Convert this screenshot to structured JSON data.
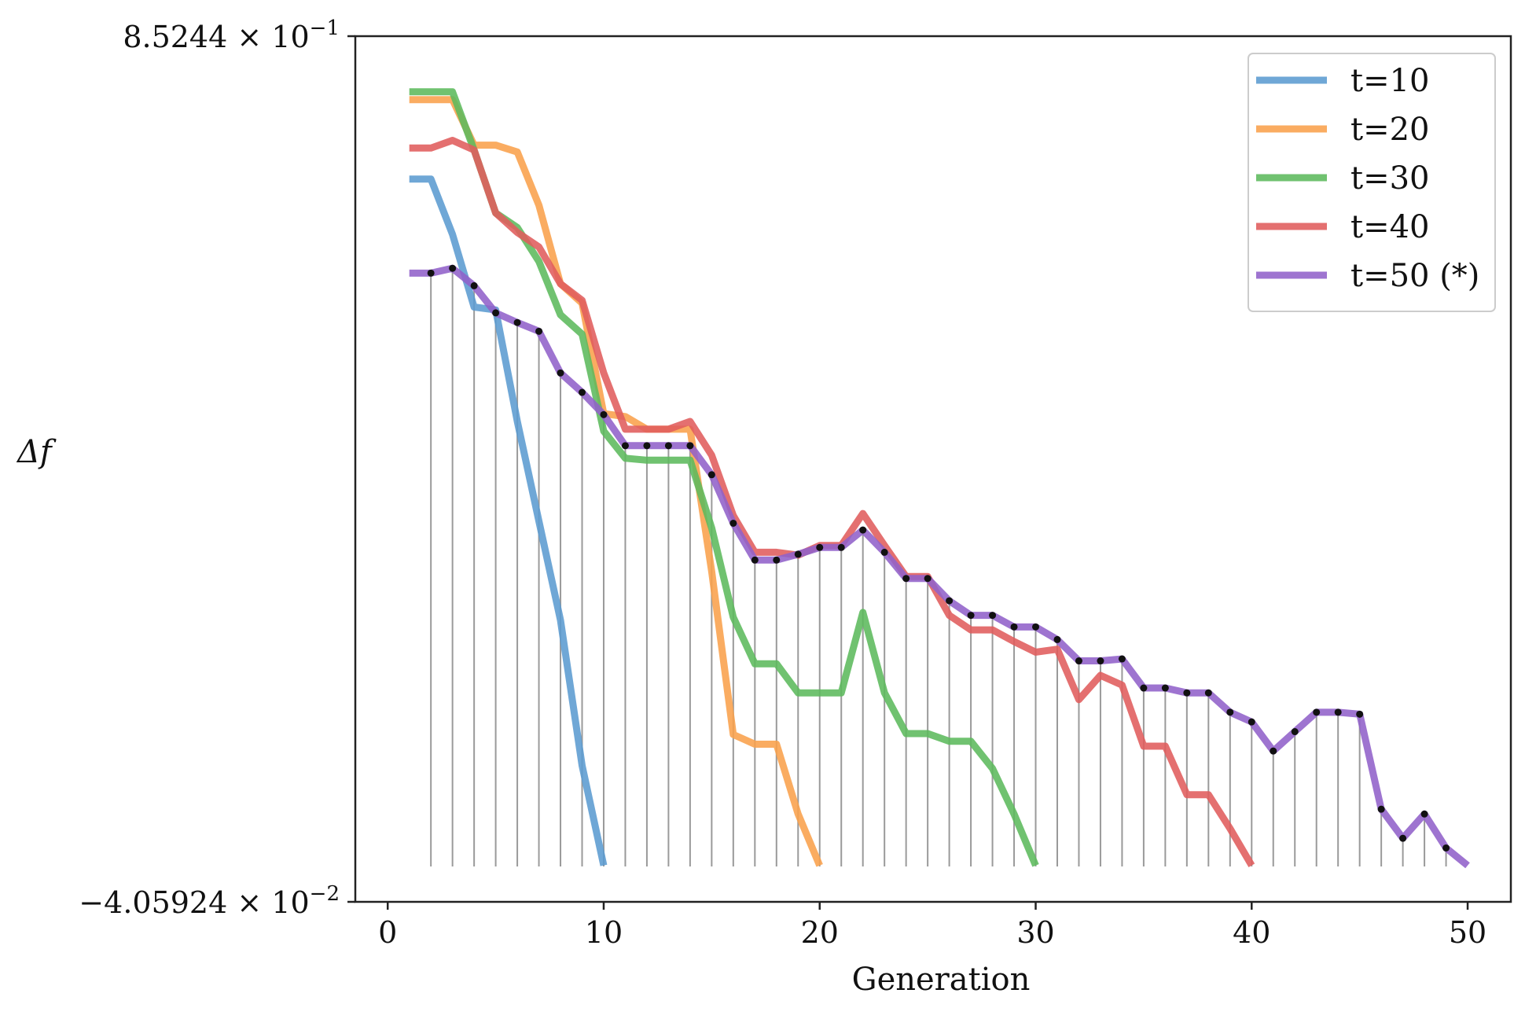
{
  "chart_data": {
    "type": "line",
    "title": "",
    "xlabel": "Generation",
    "ylabel": "Δf",
    "xlim": [
      -1.5,
      52
    ],
    "ylim": [
      -0.0405924,
      0.85244
    ],
    "x_ticks": [
      0,
      10,
      20,
      30,
      40,
      50
    ],
    "y_tick_labels": {
      "top": {
        "mantissa": "8.5244",
        "times": "×",
        "base": "10",
        "exponent": "−1"
      },
      "bottom": {
        "mantissa": "−4.05924",
        "times": "×",
        "base": "10",
        "exponent": "−2"
      }
    },
    "grid": false,
    "legend_position": "top-right",
    "marked_series": "t=50 (*)",
    "series": [
      {
        "name": "t=10",
        "color": "#5b9bd0",
        "x": [
          1,
          2,
          3,
          4,
          5,
          6,
          7,
          8,
          9,
          10
        ],
        "y": [
          0.705,
          0.705,
          0.648,
          0.573,
          0.57,
          0.455,
          0.352,
          0.25,
          0.1,
          -0.003
        ]
      },
      {
        "name": "t=20",
        "color": "#f9a04b",
        "x": [
          1,
          2,
          3,
          4,
          5,
          6,
          7,
          8,
          9,
          10,
          11,
          12,
          13,
          14,
          15,
          16,
          17,
          18,
          19,
          20
        ],
        "y": [
          0.787,
          0.787,
          0.787,
          0.74,
          0.74,
          0.733,
          0.678,
          0.597,
          0.577,
          0.463,
          0.46,
          0.447,
          0.447,
          0.447,
          0.3,
          0.132,
          0.122,
          0.122,
          0.05,
          -0.003
        ]
      },
      {
        "name": "t=30",
        "color": "#5cba5c",
        "x": [
          1,
          2,
          3,
          4,
          5,
          6,
          7,
          8,
          9,
          10,
          11,
          12,
          13,
          14,
          15,
          16,
          17,
          18,
          19,
          20,
          21,
          22,
          23,
          24,
          25,
          26,
          27,
          28,
          29,
          30
        ],
        "y": [
          0.795,
          0.795,
          0.795,
          0.735,
          0.67,
          0.655,
          0.62,
          0.565,
          0.545,
          0.445,
          0.417,
          0.415,
          0.415,
          0.415,
          0.345,
          0.253,
          0.205,
          0.205,
          0.175,
          0.175,
          0.175,
          0.258,
          0.175,
          0.133,
          0.133,
          0.125,
          0.125,
          0.097,
          0.05,
          -0.003
        ]
      },
      {
        "name": "t=40",
        "color": "#e05c5c",
        "x": [
          1,
          2,
          3,
          4,
          5,
          6,
          7,
          8,
          9,
          10,
          11,
          12,
          13,
          14,
          15,
          16,
          17,
          18,
          19,
          20,
          21,
          22,
          23,
          24,
          25,
          26,
          27,
          28,
          29,
          30,
          31,
          32,
          33,
          34,
          35,
          36,
          37,
          38,
          39,
          40
        ],
        "y": [
          0.737,
          0.737,
          0.745,
          0.735,
          0.67,
          0.65,
          0.635,
          0.597,
          0.58,
          0.505,
          0.447,
          0.447,
          0.447,
          0.455,
          0.42,
          0.358,
          0.32,
          0.32,
          0.317,
          0.327,
          0.327,
          0.36,
          0.327,
          0.295,
          0.295,
          0.255,
          0.24,
          0.24,
          0.228,
          0.217,
          0.22,
          0.168,
          0.193,
          0.183,
          0.12,
          0.12,
          0.07,
          0.07,
          0.035,
          -0.003
        ]
      },
      {
        "name": "t=50 (*)",
        "color": "#9161c9",
        "x": [
          1,
          2,
          3,
          4,
          5,
          6,
          7,
          8,
          9,
          10,
          11,
          12,
          13,
          14,
          15,
          16,
          17,
          18,
          19,
          20,
          21,
          22,
          23,
          24,
          25,
          26,
          27,
          28,
          29,
          30,
          31,
          32,
          33,
          34,
          35,
          36,
          37,
          38,
          39,
          40,
          41,
          42,
          43,
          44,
          45,
          46,
          47,
          48,
          49,
          50
        ],
        "y": [
          0.608,
          0.608,
          0.613,
          0.595,
          0.567,
          0.557,
          0.548,
          0.505,
          0.485,
          0.462,
          0.43,
          0.43,
          0.43,
          0.43,
          0.4,
          0.35,
          0.312,
          0.312,
          0.318,
          0.325,
          0.325,
          0.343,
          0.32,
          0.293,
          0.293,
          0.27,
          0.255,
          0.255,
          0.243,
          0.243,
          0.23,
          0.208,
          0.208,
          0.21,
          0.18,
          0.18,
          0.175,
          0.175,
          0.155,
          0.145,
          0.115,
          0.135,
          0.155,
          0.155,
          0.153,
          0.055,
          0.025,
          0.05,
          0.015,
          -0.003
        ]
      }
    ]
  }
}
